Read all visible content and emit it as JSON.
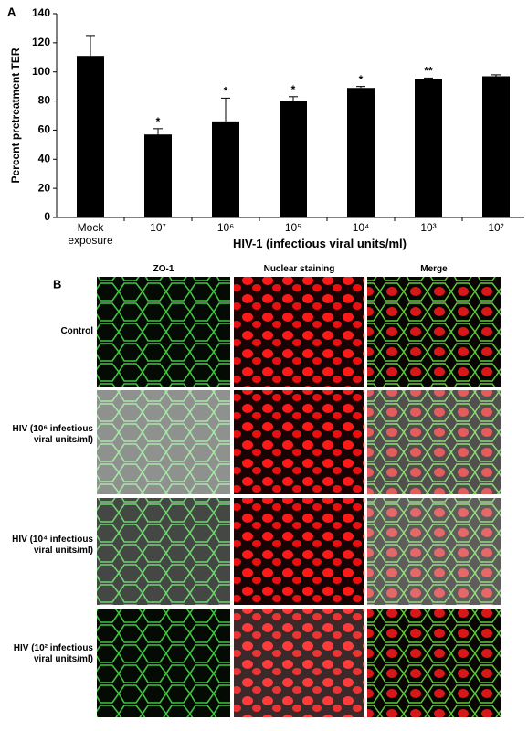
{
  "chart_data": {
    "type": "bar",
    "panel_label": "A",
    "ylabel": "Percent pretreatment TER",
    "xlabel": "HIV-1 (infectious viral units/ml)",
    "categories": [
      "Mock exposure",
      "10⁷",
      "10⁶",
      "10⁵",
      "10⁴",
      "10³",
      "10²"
    ],
    "values": [
      111,
      57,
      66,
      80,
      89,
      95,
      97
    ],
    "errors": [
      14,
      4,
      16,
      3,
      1,
      0.8,
      1
    ],
    "significance": [
      null,
      "*",
      "*",
      "*",
      "*",
      "**",
      null
    ],
    "color": "#000000",
    "ylim": [
      0,
      140
    ],
    "yticks": [
      0,
      20,
      40,
      60,
      80,
      100,
      120,
      140
    ]
  },
  "panel_b": {
    "panel_label": "B",
    "columns": [
      "ZO-1",
      "Nuclear staining",
      "Merge"
    ],
    "rows": [
      "Control",
      "HIV (10⁶ infectious viral units/ml)",
      "HIV (10⁴ infectious viral units/ml)",
      "HIV (10² infectious viral units/ml)"
    ]
  }
}
